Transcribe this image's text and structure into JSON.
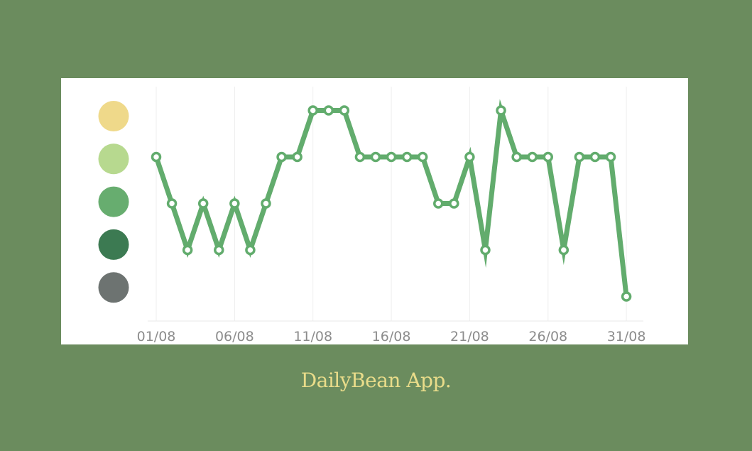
{
  "caption": "DailyBean App.",
  "mood_colors": [
    "#efd98a",
    "#b7d98f",
    "#67ad6f",
    "#3c7a52",
    "#6d7371"
  ],
  "chart_data": {
    "type": "line",
    "x": [
      "01/08",
      "02/08",
      "03/08",
      "04/08",
      "05/08",
      "06/08",
      "07/08",
      "08/08",
      "09/08",
      "10/08",
      "11/08",
      "12/08",
      "13/08",
      "14/08",
      "15/08",
      "16/08",
      "17/08",
      "18/08",
      "19/08",
      "20/08",
      "21/08",
      "22/08",
      "23/08",
      "24/08",
      "25/08",
      "26/08",
      "27/08",
      "28/08",
      "29/08",
      "30/08",
      "31/08"
    ],
    "xticks": [
      "01/08",
      "06/08",
      "11/08",
      "16/08",
      "21/08",
      "26/08",
      "31/08"
    ],
    "series": [
      {
        "values": [
          4,
          3,
          2,
          3,
          2,
          3,
          2,
          3,
          4,
          4,
          5,
          5,
          5,
          4,
          4,
          4,
          4,
          4,
          3,
          3,
          4,
          2,
          5,
          4,
          4,
          4,
          2,
          4,
          4,
          4,
          1
        ],
        "color": "#62ac6d"
      }
    ],
    "ylim": [
      1,
      5
    ],
    "y_categories": [
      "#6d7371",
      "#3c7a52",
      "#67ad6f",
      "#b7d98f",
      "#efd98a"
    ],
    "grid": "vertical",
    "legend": "none"
  }
}
